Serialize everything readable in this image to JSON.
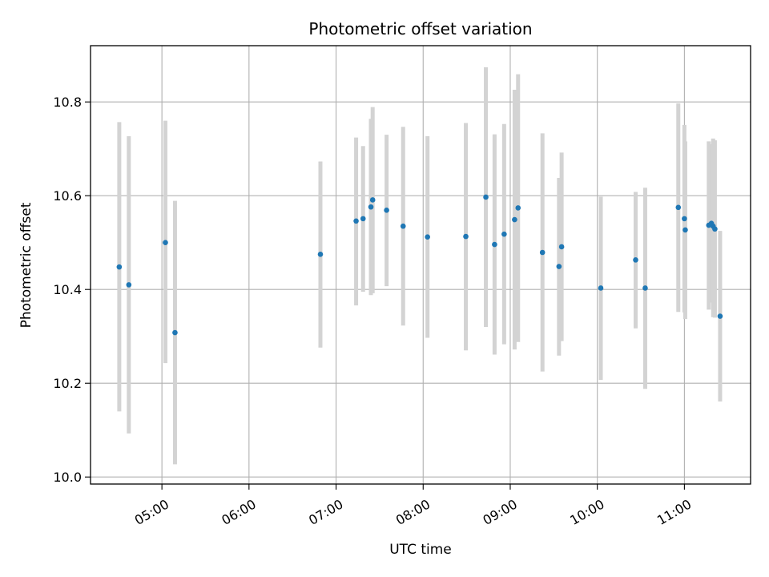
{
  "chart_data": {
    "type": "scatter",
    "title": "Photometric offset variation",
    "xlabel": "UTC time",
    "ylabel": "Photometric offset",
    "x_tick_labels": [
      "05:00",
      "06:00",
      "07:00",
      "08:00",
      "09:00",
      "10:00",
      "11:00"
    ],
    "x_tick_hours": [
      5,
      6,
      7,
      8,
      9,
      10,
      11
    ],
    "y_ticks": [
      10.0,
      10.2,
      10.4,
      10.6,
      10.8
    ],
    "y_tick_labels": [
      "10.0",
      "10.2",
      "10.4",
      "10.6",
      "10.8"
    ],
    "xlim_hours": [
      4.18,
      11.76
    ],
    "ylim": [
      9.985,
      10.92
    ],
    "grid": true,
    "point_color": "#1f77b4",
    "errorbar_color": "#d3d3d3",
    "points": [
      {
        "t": 4.51,
        "y": 10.448,
        "lo": 10.14,
        "hi": 10.757
      },
      {
        "t": 4.62,
        "y": 10.41,
        "lo": 10.093,
        "hi": 10.727
      },
      {
        "t": 5.04,
        "y": 10.5,
        "lo": 10.243,
        "hi": 10.76
      },
      {
        "t": 5.15,
        "y": 10.308,
        "lo": 10.027,
        "hi": 10.589
      },
      {
        "t": 6.82,
        "y": 10.475,
        "lo": 10.276,
        "hi": 10.673
      },
      {
        "t": 7.23,
        "y": 10.546,
        "lo": 10.366,
        "hi": 10.724
      },
      {
        "t": 7.31,
        "y": 10.551,
        "lo": 10.395,
        "hi": 10.706
      },
      {
        "t": 7.4,
        "y": 10.576,
        "lo": 10.388,
        "hi": 10.764
      },
      {
        "t": 7.42,
        "y": 10.591,
        "lo": 10.392,
        "hi": 10.789
      },
      {
        "t": 7.58,
        "y": 10.569,
        "lo": 10.407,
        "hi": 10.73
      },
      {
        "t": 7.77,
        "y": 10.535,
        "lo": 10.323,
        "hi": 10.747
      },
      {
        "t": 8.05,
        "y": 10.512,
        "lo": 10.297,
        "hi": 10.727
      },
      {
        "t": 8.49,
        "y": 10.513,
        "lo": 10.27,
        "hi": 10.755
      },
      {
        "t": 8.72,
        "y": 10.597,
        "lo": 10.32,
        "hi": 10.874
      },
      {
        "t": 8.82,
        "y": 10.496,
        "lo": 10.261,
        "hi": 10.731
      },
      {
        "t": 8.93,
        "y": 10.518,
        "lo": 10.283,
        "hi": 10.753
      },
      {
        "t": 9.05,
        "y": 10.549,
        "lo": 10.272,
        "hi": 10.826
      },
      {
        "t": 9.09,
        "y": 10.574,
        "lo": 10.288,
        "hi": 10.859
      },
      {
        "t": 9.37,
        "y": 10.479,
        "lo": 10.225,
        "hi": 10.733
      },
      {
        "t": 9.56,
        "y": 10.449,
        "lo": 10.259,
        "hi": 10.638
      },
      {
        "t": 9.59,
        "y": 10.491,
        "lo": 10.29,
        "hi": 10.692
      },
      {
        "t": 10.04,
        "y": 10.403,
        "lo": 10.207,
        "hi": 10.598
      },
      {
        "t": 10.44,
        "y": 10.463,
        "lo": 10.317,
        "hi": 10.608
      },
      {
        "t": 10.55,
        "y": 10.403,
        "lo": 10.188,
        "hi": 10.617
      },
      {
        "t": 10.93,
        "y": 10.575,
        "lo": 10.352,
        "hi": 10.797
      },
      {
        "t": 11.0,
        "y": 10.551,
        "lo": 10.351,
        "hi": 10.751
      },
      {
        "t": 11.01,
        "y": 10.527,
        "lo": 10.337,
        "hi": 10.716
      },
      {
        "t": 11.28,
        "y": 10.537,
        "lo": 10.357,
        "hi": 10.716
      },
      {
        "t": 11.31,
        "y": 10.541,
        "lo": 10.372,
        "hi": 10.71
      },
      {
        "t": 11.33,
        "y": 10.535,
        "lo": 10.341,
        "hi": 10.722
      },
      {
        "t": 11.35,
        "y": 10.529,
        "lo": 10.34,
        "hi": 10.718
      },
      {
        "t": 11.41,
        "y": 10.343,
        "lo": 10.161,
        "hi": 10.525
      }
    ]
  }
}
